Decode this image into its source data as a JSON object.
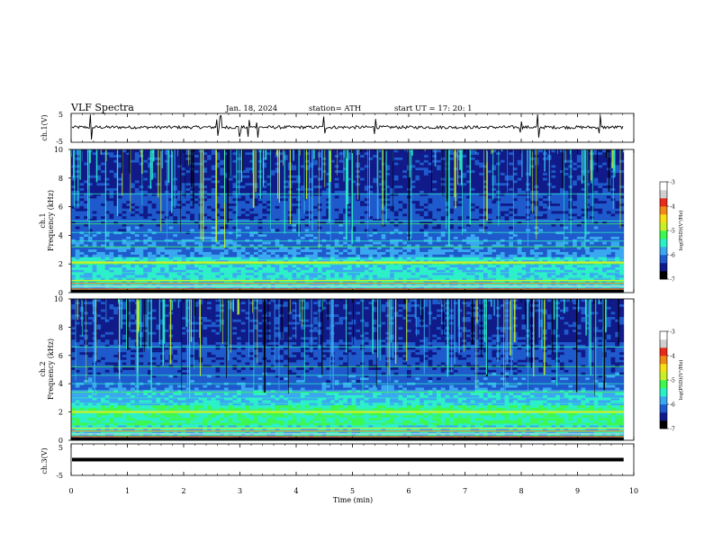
{
  "header": {
    "title": "VLF  Spectra",
    "date": "Jan.  18,  2024",
    "station": "station= ATH",
    "start": "start  UT  =    17: 20: 1"
  },
  "colors": {
    "colormap": [
      "#000000",
      "#101a88",
      "#1e5acc",
      "#3aa8f0",
      "#2cf0c8",
      "#3cf850",
      "#c8f028",
      "#f8e018",
      "#f08a18",
      "#e82a1a",
      "#d0d0d0",
      "#ffffff"
    ],
    "trace": "#000000"
  },
  "chart_data": [
    {
      "type": "line",
      "name": "ch1-waveform",
      "ylabel": "ch.1(V)",
      "ylim": [
        -5,
        5
      ],
      "yticks": [
        "5",
        "-5"
      ],
      "xlim": [
        0,
        10
      ],
      "data_end_min": 9.82,
      "baseline_v": 0.2,
      "spikes_min": [
        0.35,
        2.6,
        2.65,
        3.0,
        3.15,
        3.3,
        4.5,
        5.4,
        8.0,
        8.3,
        9.4
      ]
    },
    {
      "type": "heatmap",
      "name": "ch1-spectrogram",
      "ylabel": "ch.1\nFrequency  (kHz)",
      "ylim": [
        0,
        10
      ],
      "yticks": [
        "0",
        "2",
        "4",
        "6",
        "8",
        "10"
      ],
      "xlim": [
        0,
        10
      ],
      "data_end_min": 9.82,
      "colorbar": {
        "label": "log(PSD)(V²/Hz)",
        "range": [
          -7,
          -3
        ],
        "ticks": [
          "-3",
          "-4",
          "-5",
          "-6",
          "-7"
        ]
      },
      "bands_khz": [
        0.2,
        0.4,
        0.6,
        0.8,
        1.0,
        1.4,
        2.0,
        2.1,
        2.3,
        3.2,
        3.6,
        4.2,
        4.8,
        5.0,
        6.9
      ],
      "strong_band_khz": 2.1
    },
    {
      "type": "heatmap",
      "name": "ch2-spectrogram",
      "ylabel": "ch.2\nFrequency  (kHz)",
      "ylim": [
        0,
        10
      ],
      "yticks": [
        "0",
        "2",
        "4",
        "6",
        "8",
        "10"
      ],
      "xlim": [
        0,
        10
      ],
      "data_end_min": 9.82,
      "colorbar": {
        "label": "log(PSD)(V²/Hz)",
        "range": [
          -7,
          -3
        ],
        "ticks": [
          "-3",
          "-4",
          "-5",
          "-6",
          "-7"
        ]
      },
      "bands_khz": [
        0.3,
        0.6,
        0.9,
        1.2,
        1.6,
        2.0,
        2.2,
        2.6,
        3.0,
        3.4,
        4.0,
        4.6,
        5.2,
        6.6
      ],
      "strong_band_khz": 2.0
    },
    {
      "type": "line",
      "name": "ch3-waveform",
      "ylabel": "ch.3(V)",
      "ylim": [
        -5,
        5
      ],
      "yticks": [
        "5",
        "-5"
      ],
      "xlim": [
        0,
        10
      ],
      "data_end_min": 9.82,
      "constant_v": 0.0,
      "xlabel": "Time  (min)",
      "xticks": [
        "0",
        "1",
        "2",
        "3",
        "4",
        "5",
        "6",
        "7",
        "8",
        "9",
        "10"
      ]
    }
  ]
}
